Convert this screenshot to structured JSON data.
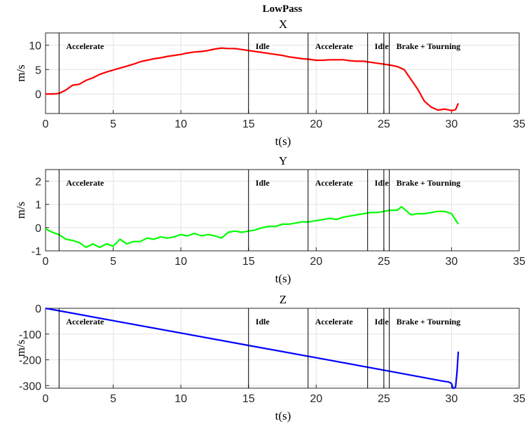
{
  "figure_title": "LowPass",
  "chart_data": [
    {
      "type": "line",
      "title": "X",
      "xlabel": "t(s)",
      "ylabel": "m/s",
      "xlim": [
        0,
        35
      ],
      "ylim": [
        -4,
        12.5
      ],
      "xticks": [
        0,
        5,
        10,
        15,
        20,
        25,
        30,
        35
      ],
      "yticks": [
        0,
        5,
        10
      ],
      "grid": true,
      "series": [
        {
          "color": "#ff0000",
          "x": [
            0,
            0.5,
            1.0,
            1.5,
            2.0,
            2.5,
            3.0,
            3.5,
            4.0,
            4.5,
            5.0,
            5.5,
            6.0,
            6.5,
            7.0,
            7.5,
            8.0,
            8.5,
            9.0,
            9.5,
            10.0,
            10.5,
            11.0,
            11.5,
            12.0,
            12.5,
            13.0,
            13.5,
            14.0,
            14.5,
            15.0,
            15.5,
            16.0,
            16.5,
            17.0,
            17.5,
            18.0,
            18.5,
            19.0,
            19.5,
            20.0,
            20.5,
            21.0,
            21.5,
            22.0,
            22.5,
            23.0,
            23.5,
            24.0,
            24.5,
            25.0,
            25.5,
            26.0,
            26.5,
            27.0,
            27.5,
            28.0,
            28.5,
            29.0,
            29.5,
            30.0,
            30.3,
            30.5
          ],
          "y": [
            0.0,
            0.0,
            0.1,
            0.8,
            1.8,
            2.0,
            2.8,
            3.3,
            4.0,
            4.5,
            4.9,
            5.3,
            5.7,
            6.1,
            6.6,
            6.9,
            7.2,
            7.4,
            7.7,
            7.9,
            8.1,
            8.4,
            8.6,
            8.7,
            8.9,
            9.2,
            9.4,
            9.3,
            9.3,
            9.1,
            8.9,
            8.7,
            8.5,
            8.3,
            8.1,
            7.9,
            7.6,
            7.4,
            7.2,
            7.1,
            6.9,
            6.9,
            7.0,
            7.0,
            7.0,
            6.8,
            6.7,
            6.7,
            6.5,
            6.3,
            6.1,
            5.9,
            5.6,
            5.0,
            3.0,
            1.0,
            -1.5,
            -2.7,
            -3.3,
            -3.1,
            -3.4,
            -3.2,
            -1.9
          ]
        }
      ],
      "annotations": [
        {
          "x": 1.0,
          "label": "Accelerate"
        },
        {
          "x": 15.0,
          "label": "Idle"
        },
        {
          "x": 19.4,
          "label": "Accelerate"
        },
        {
          "x": 23.8,
          "label": "Idle"
        },
        {
          "x": 25.0,
          "label": ""
        },
        {
          "x": 25.4,
          "label": "Brake + Tourning"
        }
      ]
    },
    {
      "type": "line",
      "title": "Y",
      "xlabel": "t(s)",
      "ylabel": "m/s",
      "xlim": [
        0,
        35
      ],
      "ylim": [
        -1,
        2.5
      ],
      "xticks": [
        0,
        5,
        10,
        15,
        20,
        25,
        30,
        35
      ],
      "yticks": [
        -1,
        0,
        1,
        2
      ],
      "grid": true,
      "series": [
        {
          "color": "#00ff00",
          "x": [
            0,
            0.5,
            1.0,
            1.5,
            2.0,
            2.5,
            3.0,
            3.5,
            4.0,
            4.5,
            5.0,
            5.5,
            6.0,
            6.5,
            7.0,
            7.5,
            8.0,
            8.5,
            9.0,
            9.5,
            10.0,
            10.5,
            11.0,
            11.5,
            12.0,
            12.5,
            13.0,
            13.5,
            14.0,
            14.5,
            15.0,
            15.5,
            16.0,
            16.5,
            17.0,
            17.5,
            18.0,
            18.5,
            19.0,
            19.5,
            20.0,
            20.5,
            21.0,
            21.5,
            22.0,
            22.5,
            23.0,
            23.5,
            24.0,
            24.5,
            25.0,
            25.5,
            26.0,
            26.3,
            26.5,
            27.0,
            27.5,
            28.0,
            28.5,
            29.0,
            29.5,
            30.0,
            30.5
          ],
          "y": [
            -0.05,
            -0.2,
            -0.3,
            -0.5,
            -0.55,
            -0.65,
            -0.85,
            -0.7,
            -0.85,
            -0.7,
            -0.8,
            -0.5,
            -0.7,
            -0.6,
            -0.6,
            -0.45,
            -0.5,
            -0.4,
            -0.45,
            -0.4,
            -0.3,
            -0.35,
            -0.25,
            -0.35,
            -0.3,
            -0.35,
            -0.45,
            -0.2,
            -0.15,
            -0.2,
            -0.15,
            -0.1,
            0.0,
            0.05,
            0.05,
            0.15,
            0.15,
            0.2,
            0.25,
            0.25,
            0.3,
            0.35,
            0.4,
            0.35,
            0.45,
            0.5,
            0.55,
            0.6,
            0.65,
            0.65,
            0.7,
            0.75,
            0.75,
            0.9,
            0.8,
            0.55,
            0.6,
            0.6,
            0.65,
            0.7,
            0.7,
            0.6,
            0.15
          ]
        }
      ],
      "annotations": [
        {
          "x": 1.0,
          "label": "Accelerate"
        },
        {
          "x": 15.0,
          "label": "Idle"
        },
        {
          "x": 19.4,
          "label": "Accelerate"
        },
        {
          "x": 23.8,
          "label": "Idle"
        },
        {
          "x": 25.0,
          "label": ""
        },
        {
          "x": 25.4,
          "label": "Brake + Tourning"
        }
      ]
    },
    {
      "type": "line",
      "title": "Z",
      "xlabel": "t(s)",
      "ylabel": "m/s",
      "xlim": [
        0,
        35
      ],
      "ylim": [
        -310,
        0
      ],
      "xticks": [
        0,
        5,
        10,
        15,
        20,
        25,
        30,
        35
      ],
      "yticks": [
        -300,
        -200,
        -100,
        0
      ],
      "grid": true,
      "series": [
        {
          "color": "#0000ff",
          "x": [
            0,
            5,
            10,
            15,
            20,
            25,
            29.5,
            29.8,
            30.0,
            30.1,
            30.2,
            30.3,
            30.4,
            30.5
          ],
          "y": [
            0,
            -48,
            -96,
            -144,
            -192,
            -240,
            -284,
            -286,
            -292,
            -310,
            -310,
            -305,
            -250,
            -168
          ]
        }
      ],
      "annotations": [
        {
          "x": 1.0,
          "label": "Accelerate"
        },
        {
          "x": 15.0,
          "label": "Idle"
        },
        {
          "x": 19.4,
          "label": "Accelerate"
        },
        {
          "x": 23.8,
          "label": "Idle"
        },
        {
          "x": 25.0,
          "label": ""
        },
        {
          "x": 25.4,
          "label": "Brake + Tourning"
        }
      ]
    }
  ]
}
